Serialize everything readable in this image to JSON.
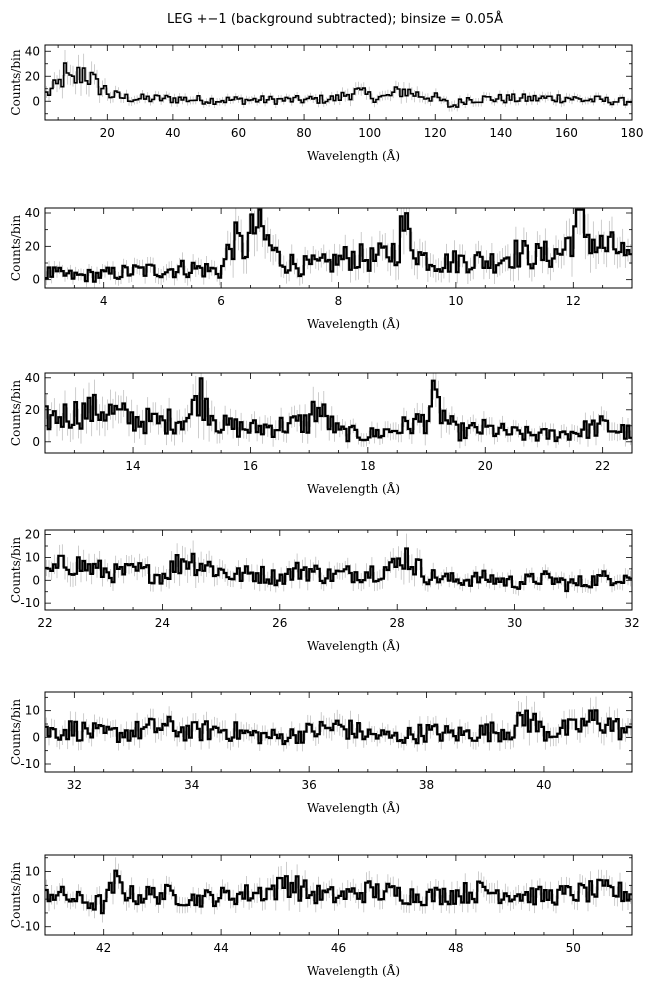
{
  "figure": {
    "title": "LEG +−1 (background subtracted); binsize = 0.05Å"
  },
  "chart_data": [
    {
      "type": "line",
      "title": "",
      "xlabel": "Wavelength (Å)",
      "ylabel": "Counts/bin",
      "xlim": [
        1,
        180
      ],
      "ylim": [
        -15,
        45
      ],
      "xticks": [
        20,
        40,
        60,
        80,
        100,
        120,
        140,
        160,
        180
      ],
      "yticks": [
        0,
        20,
        40
      ],
      "grid": false,
      "series": [
        {
          "x": [
            1,
            5,
            7,
            9,
            11,
            13,
            15,
            17,
            19,
            21,
            25,
            30,
            40,
            50,
            60,
            70,
            80,
            90,
            95,
            100,
            105,
            110,
            115,
            120,
            125,
            130,
            140,
            150,
            160,
            165,
            170,
            175,
            180
          ],
          "y": [
            5,
            12,
            22,
            14,
            20,
            25,
            18,
            12,
            10,
            5,
            3,
            2,
            2,
            1,
            1,
            1,
            1,
            2,
            8,
            4,
            3,
            9,
            5,
            3,
            -4,
            2,
            2,
            2,
            3,
            1,
            1,
            0,
            0
          ]
        }
      ]
    },
    {
      "type": "line",
      "title": "",
      "xlabel": "Wavelength (Å)",
      "ylabel": "Counts/bin",
      "xlim": [
        3,
        13
      ],
      "ylim": [
        -5,
        43
      ],
      "xticks": [
        4,
        6,
        8,
        10,
        12
      ],
      "yticks": [
        0,
        20,
        40
      ],
      "grid": false,
      "series": [
        {
          "x": [
            3.0,
            3.5,
            4.0,
            4.5,
            5.0,
            5.5,
            6.0,
            6.2,
            6.4,
            6.6,
            6.8,
            7.0,
            7.4,
            7.8,
            8.2,
            8.6,
            9.0,
            9.1,
            9.4,
            9.8,
            10.2,
            10.6,
            11.0,
            11.4,
            11.8,
            12.1,
            12.4,
            12.8,
            13.0
          ],
          "y": [
            4,
            2,
            3,
            5,
            6,
            7,
            5,
            24,
            18,
            33,
            22,
            12,
            8,
            9,
            14,
            12,
            18,
            33,
            14,
            10,
            12,
            11,
            16,
            14,
            16,
            35,
            20,
            18,
            8
          ]
        }
      ]
    },
    {
      "type": "line",
      "title": "",
      "xlabel": "Wavelength (Å)",
      "ylabel": "Counts/bin",
      "xlim": [
        12.5,
        22.5
      ],
      "ylim": [
        -7,
        43
      ],
      "xticks": [
        14,
        16,
        18,
        20,
        22
      ],
      "yticks": [
        0,
        20,
        40
      ],
      "grid": false,
      "series": [
        {
          "x": [
            12.5,
            13.0,
            13.5,
            14.0,
            14.5,
            15.0,
            15.1,
            15.5,
            16.0,
            16.5,
            17.0,
            17.1,
            17.5,
            18.0,
            18.5,
            19.0,
            19.1,
            19.5,
            20.0,
            20.5,
            21.0,
            21.5,
            22.0,
            22.5
          ],
          "y": [
            14,
            18,
            20,
            14,
            12,
            16,
            33,
            10,
            8,
            10,
            12,
            22,
            6,
            4,
            8,
            14,
            26,
            6,
            8,
            5,
            4,
            6,
            10,
            5
          ]
        }
      ]
    },
    {
      "type": "line",
      "title": "",
      "xlabel": "Wavelength (Å)",
      "ylabel": "Counts/bin",
      "xlim": [
        22,
        32
      ],
      "ylim": [
        -13,
        22
      ],
      "xticks": [
        22,
        24,
        26,
        28,
        30,
        32
      ],
      "yticks": [
        -10,
        0,
        10,
        20
      ],
      "grid": false,
      "series": [
        {
          "x": [
            22.0,
            22.4,
            22.8,
            23.2,
            23.6,
            24.0,
            24.4,
            24.8,
            25.2,
            25.6,
            26.0,
            26.4,
            26.8,
            27.2,
            27.6,
            28.0,
            28.1,
            28.5,
            29.0,
            29.5,
            30.0,
            30.5,
            31.0,
            31.5,
            32.0
          ],
          "y": [
            2,
            8,
            5,
            3,
            4,
            2,
            10,
            6,
            2,
            3,
            1,
            5,
            2,
            3,
            4,
            6,
            12,
            2,
            0,
            1,
            -1,
            1,
            -2,
            1,
            2
          ]
        }
      ]
    },
    {
      "type": "line",
      "title": "",
      "xlabel": "Wavelength (Å)",
      "ylabel": "Counts/bin",
      "xlim": [
        31.5,
        41.5
      ],
      "ylim": [
        -13,
        17
      ],
      "xticks": [
        32,
        34,
        36,
        38,
        40
      ],
      "yticks": [
        -10,
        0,
        10
      ],
      "grid": false,
      "series": [
        {
          "x": [
            31.5,
            32.0,
            32.5,
            33.0,
            33.5,
            34.0,
            34.5,
            35.0,
            35.5,
            36.0,
            36.5,
            37.0,
            37.5,
            38.0,
            38.5,
            39.0,
            39.5,
            39.7,
            40.0,
            40.5,
            40.9,
            41.5
          ],
          "y": [
            2,
            3,
            1,
            2,
            4,
            2,
            3,
            1,
            0,
            2,
            4,
            1,
            0,
            2,
            1,
            2,
            3,
            8,
            2,
            3,
            7,
            1
          ]
        }
      ]
    },
    {
      "type": "line",
      "title": "",
      "xlabel": "Wavelength (Å)",
      "ylabel": "Counts/bin",
      "xlim": [
        41,
        51
      ],
      "ylim": [
        -13,
        16
      ],
      "xticks": [
        42,
        44,
        46,
        48,
        50
      ],
      "yticks": [
        -10,
        0,
        10
      ],
      "grid": false,
      "series": [
        {
          "x": [
            41.0,
            41.5,
            42.0,
            42.2,
            42.5,
            43.0,
            43.5,
            44.0,
            44.5,
            45.0,
            45.1,
            45.5,
            46.0,
            46.5,
            47.0,
            47.5,
            48.0,
            48.5,
            49.0,
            49.5,
            50.0,
            50.5,
            51.0
          ],
          "y": [
            3,
            0,
            -2,
            6,
            1,
            2,
            0,
            1,
            2,
            4,
            7,
            2,
            1,
            3,
            2,
            1,
            2,
            3,
            2,
            1,
            2,
            3,
            2
          ]
        }
      ]
    }
  ]
}
